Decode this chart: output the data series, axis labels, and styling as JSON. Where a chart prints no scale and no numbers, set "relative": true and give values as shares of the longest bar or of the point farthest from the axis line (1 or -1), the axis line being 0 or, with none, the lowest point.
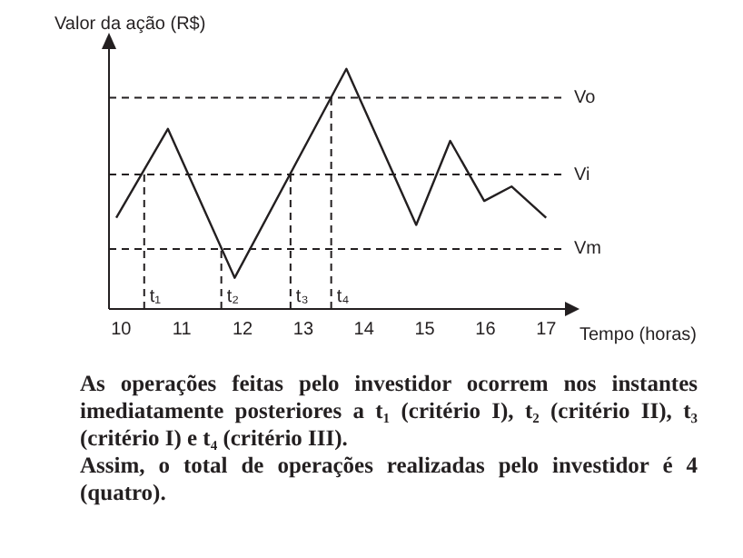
{
  "chart_data": {
    "type": "line",
    "relative": true,
    "ylabel": "Valor da ação (R$)",
    "xlabel": "Tempo (horas)",
    "x": [
      9.92,
      10.77,
      11.87,
      13.71,
      14.86,
      15.42,
      15.98,
      16.43,
      17.0
    ],
    "values": [
      0.38,
      0.75,
      0.13,
      1,
      0.35,
      0.7,
      0.45,
      0.51,
      0.38
    ],
    "color": "#231f20",
    "marker": "none",
    "grid": false,
    "legend": false,
    "tick_labels": "x",
    "xlim": [
      9.8,
      17.4
    ],
    "xticks": [
      10,
      11,
      12,
      13,
      14,
      15,
      16,
      17
    ],
    "ref_lines": [
      {
        "axis": "y",
        "value": 0.88,
        "label": "Vo",
        "line_style": "dashed"
      },
      {
        "axis": "y",
        "value": 0.56,
        "label": "Vi",
        "line_style": "dashed"
      },
      {
        "axis": "y",
        "value": 0.25,
        "label": "Vm",
        "line_style": "dashed"
      },
      {
        "axis": "x",
        "value": 10.38,
        "label": "t₁",
        "line_style": "dashed"
      },
      {
        "axis": "x",
        "value": 11.65,
        "label": "t₂",
        "line_style": "dashed"
      },
      {
        "axis": "x",
        "value": 12.79,
        "label": "t₃",
        "line_style": "dashed"
      },
      {
        "axis": "x",
        "value": 13.46,
        "label": "t₄",
        "line_style": "dashed"
      }
    ],
    "annotations": [
      "As operações feitas pelo investidor ocorrem nos instantes imediatamente posteriores a t₁ (critério I), t₂ (critério II), t₃ (critério I) e t₄ (critério III).",
      "Assim, o total de operações realizadas pelo investidor é 4 (quatro)."
    ]
  }
}
